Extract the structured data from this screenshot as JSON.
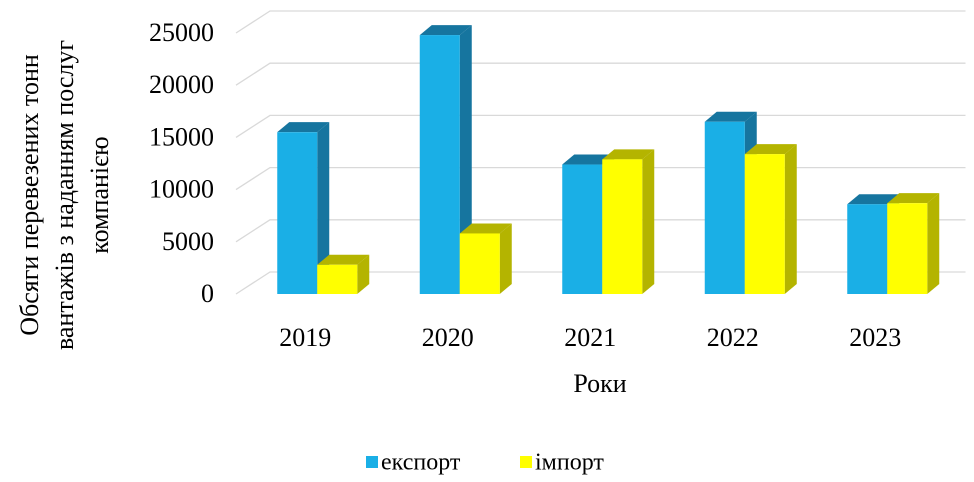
{
  "chart_data": {
    "type": "bar3d",
    "y_label": [
      "Обсяги перевезених тонн",
      "вантажів з наданням послуг",
      "компанією"
    ],
    "x_label": "Роки",
    "categories": [
      "2019",
      "2020",
      "2021",
      "2022",
      "2023"
    ],
    "series": [
      {
        "name": "експорт",
        "color": "#1aafe6",
        "side_color": "#16759f",
        "values": [
          15500,
          24800,
          12400,
          16500,
          8600
        ]
      },
      {
        "name": "імпорт",
        "color": "#ffff00",
        "side_color": "#b4b400",
        "values": [
          2800,
          5800,
          12900,
          13400,
          8700
        ]
      }
    ],
    "ylim": [
      0,
      25000
    ],
    "yticks": [
      0,
      5000,
      10000,
      15000,
      20000,
      25000
    ],
    "grid": true,
    "legend": "bottom"
  }
}
